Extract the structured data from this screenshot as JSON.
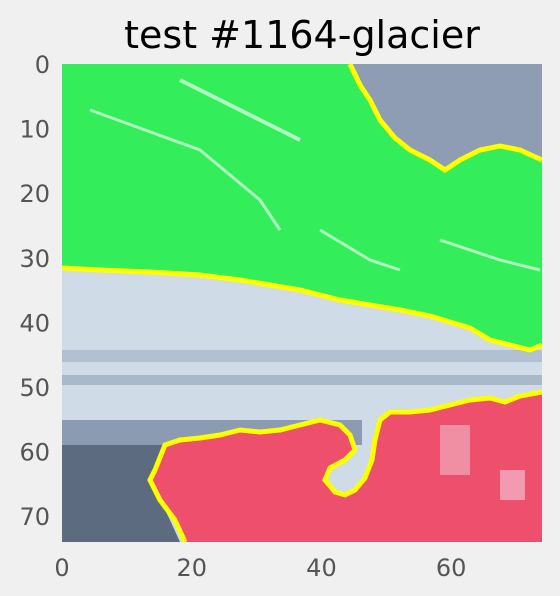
{
  "title": "test #1164-glacier",
  "chart_data": {
    "type": "heatmap",
    "title": "test #1164-glacier",
    "x_ticks": [
      0,
      20,
      40,
      60
    ],
    "y_ticks": [
      0,
      10,
      20,
      30,
      40,
      50,
      60,
      70
    ],
    "xlim": [
      0,
      74
    ],
    "ylim": [
      74,
      0
    ],
    "grid": false,
    "legend": "none",
    "regions": [
      {
        "name": "green",
        "color": "#33ee5a"
      },
      {
        "name": "red",
        "color": "#ee4f6c"
      }
    ],
    "outline_color": "#ffff00"
  }
}
